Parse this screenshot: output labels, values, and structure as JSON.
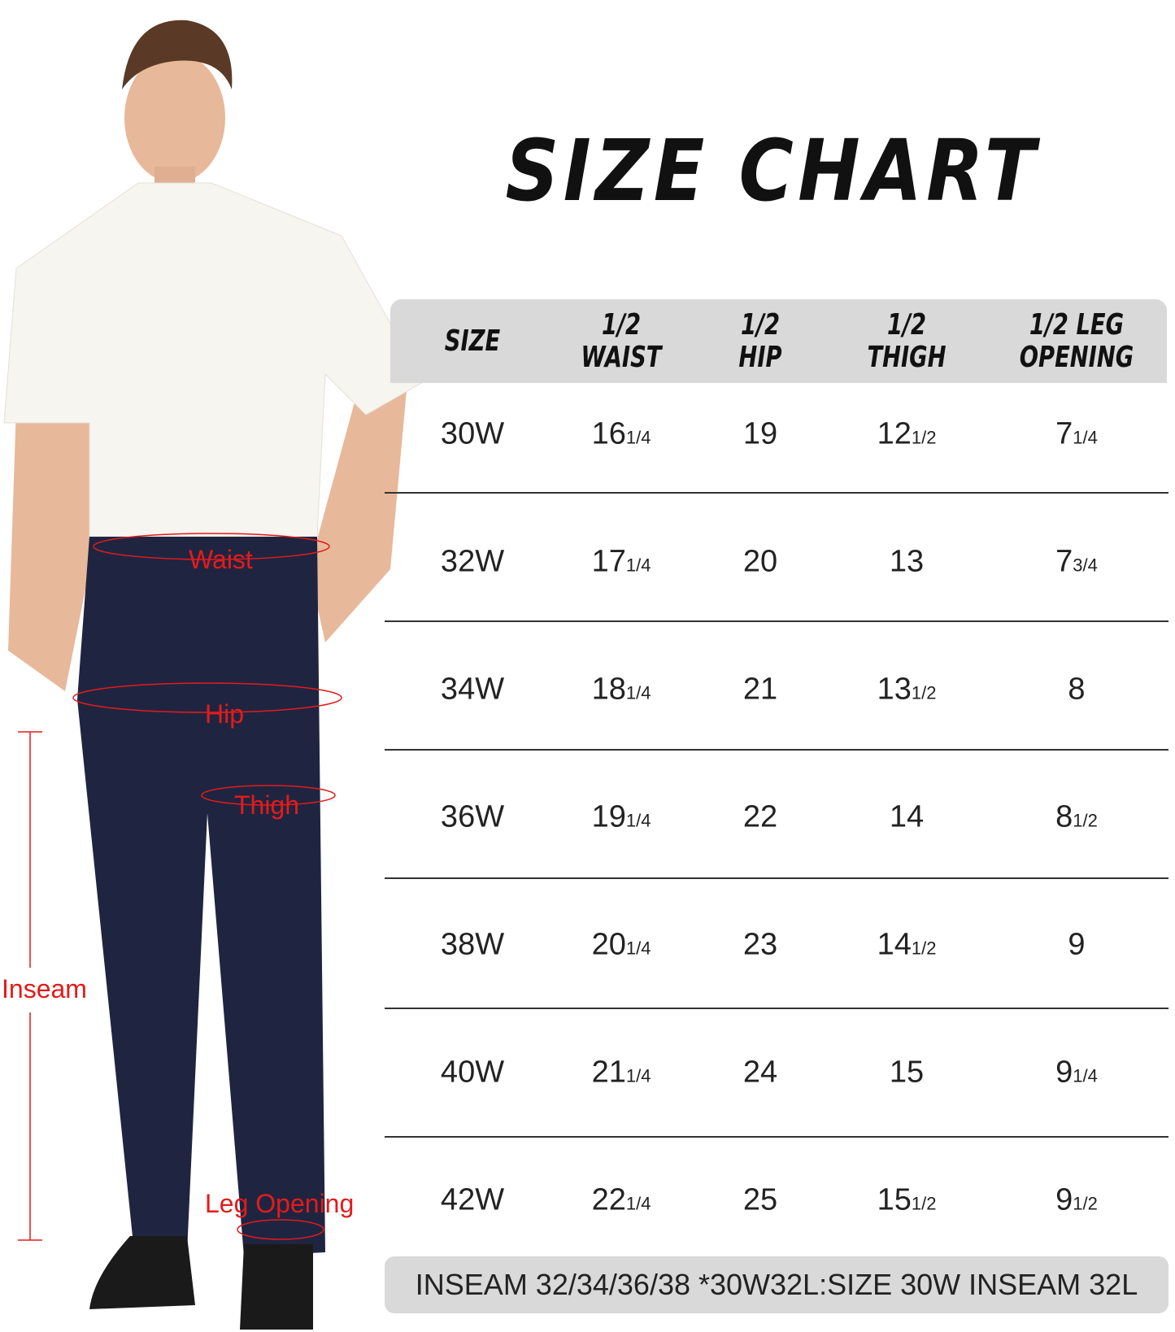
{
  "title": "SIZE CHART",
  "table": {
    "headers": [
      "SIZE",
      "1/2\nWAIST",
      "1/2\nHIP",
      "1/2\nTHIGH",
      "1/2 LEG\nOPENING"
    ],
    "rows": [
      [
        [
          "30W",
          ""
        ],
        [
          "16",
          "1/4"
        ],
        [
          "19",
          ""
        ],
        [
          "12",
          "1/2"
        ],
        [
          "7",
          "1/4"
        ]
      ],
      [
        [
          "32W",
          ""
        ],
        [
          "17",
          "1/4"
        ],
        [
          "20",
          ""
        ],
        [
          "13",
          ""
        ],
        [
          "7",
          "3/4"
        ]
      ],
      [
        [
          "34W",
          ""
        ],
        [
          "18",
          "1/4"
        ],
        [
          "21",
          ""
        ],
        [
          "13",
          "1/2"
        ],
        [
          "8",
          ""
        ]
      ],
      [
        [
          "36W",
          ""
        ],
        [
          "19",
          "1/4"
        ],
        [
          "22",
          ""
        ],
        [
          "14",
          ""
        ],
        [
          "8",
          "1/2"
        ]
      ],
      [
        [
          "38W",
          ""
        ],
        [
          "20",
          "1/4"
        ],
        [
          "23",
          ""
        ],
        [
          "14",
          "1/2"
        ],
        [
          "9",
          ""
        ]
      ],
      [
        [
          "40W",
          ""
        ],
        [
          "21",
          "1/4"
        ],
        [
          "24",
          ""
        ],
        [
          "15",
          ""
        ],
        [
          "9",
          "1/4"
        ]
      ],
      [
        [
          "42W",
          ""
        ],
        [
          "22",
          "1/4"
        ],
        [
          "25",
          ""
        ],
        [
          "15",
          "1/2"
        ],
        [
          "9",
          "1/2"
        ]
      ]
    ]
  },
  "footer": "INSEAM 32/34/36/38 *30W32L:SIZE 30W INSEAM 32L",
  "annotations": {
    "waist": "Waist",
    "hip": "Hip",
    "thigh": "Thigh",
    "inseam": "Inseam",
    "leg_opening": "Leg Opening"
  },
  "colors": {
    "annotation": "#e31b1b",
    "pants": "#1f2540",
    "shirt": "#f7f5f0",
    "header_bg": "#d9d9d9"
  }
}
